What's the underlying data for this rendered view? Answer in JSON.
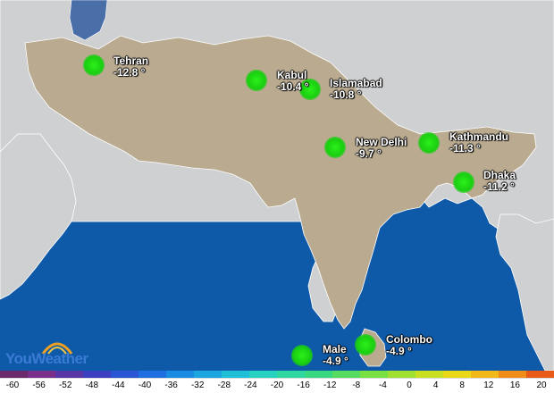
{
  "map": {
    "cities": [
      {
        "name": "Tehran",
        "temp": "-12.8 °"
      },
      {
        "name": "Kabul",
        "temp": "-10.4 °"
      },
      {
        "name": "Islamabad",
        "temp": "-10.8 °"
      },
      {
        "name": "New Delhi",
        "temp": "-9.7 °"
      },
      {
        "name": "Kathmandu",
        "temp": "-11.3 °"
      },
      {
        "name": "Dhaka",
        "temp": "-11.2 °"
      },
      {
        "name": "Colombo",
        "temp": "-4.9 °"
      },
      {
        "name": "Male",
        "temp": "-4.9 °"
      }
    ],
    "colors": {
      "land": "#b9aa90",
      "land_other": "#cfd0d2",
      "sea": "#0f5aa8",
      "marker": "#22e01a"
    }
  },
  "logo": {
    "text": "YouWeather"
  },
  "scale": {
    "labels": [
      "-60",
      "-56",
      "-52",
      "-48",
      "-44",
      "-40",
      "-36",
      "-32",
      "-28",
      "-24",
      "-20",
      "-16",
      "-12",
      "-8",
      "-4",
      "0",
      "4",
      "8",
      "12",
      "16",
      "20"
    ],
    "colors": [
      "#6b2a6b",
      "#7a2f8a",
      "#5a35a6",
      "#3c40c0",
      "#2a55d4",
      "#1f6fe0",
      "#1a8be3",
      "#1aa6e0",
      "#20bfd8",
      "#27d1c0",
      "#2fd8a0",
      "#38d880",
      "#55dc60",
      "#78e040",
      "#a0e030",
      "#c8e020",
      "#e8d818",
      "#f0b818",
      "#f08c18",
      "#e85a18"
    ]
  }
}
